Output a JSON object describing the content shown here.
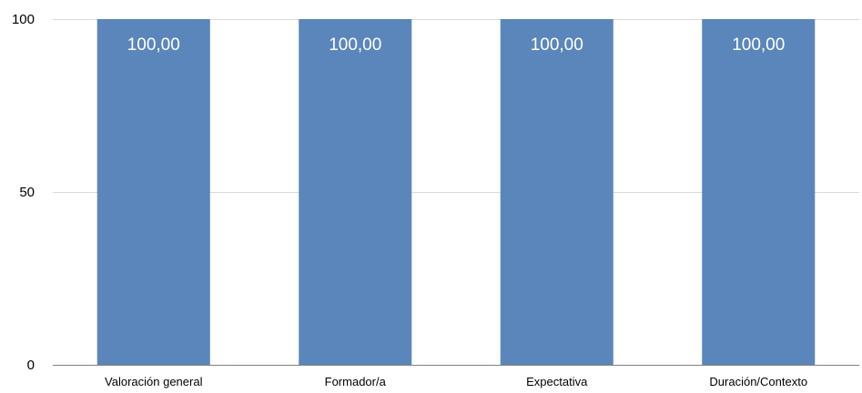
{
  "chart_data": {
    "type": "bar",
    "categories": [
      "Valoración general",
      "Formador/a",
      "Expectativa",
      "Duración/Contexto"
    ],
    "series": [
      {
        "values": [
          100,
          100,
          100,
          100
        ],
        "data_labels": [
          "100,00",
          "100,00",
          "100,00",
          "100,00"
        ]
      }
    ],
    "title": "",
    "xlabel": "",
    "ylabel": "",
    "ylim": [
      0,
      100
    ],
    "yticks": [
      0,
      50,
      100
    ],
    "ytick_labels": [
      "0",
      "50",
      "100"
    ],
    "grid": true,
    "legend": "none",
    "colors": {
      "bar": "#5b86bb",
      "grid": "#d9d9d9",
      "axis": "#808080",
      "data_label": "#ffffff"
    }
  }
}
